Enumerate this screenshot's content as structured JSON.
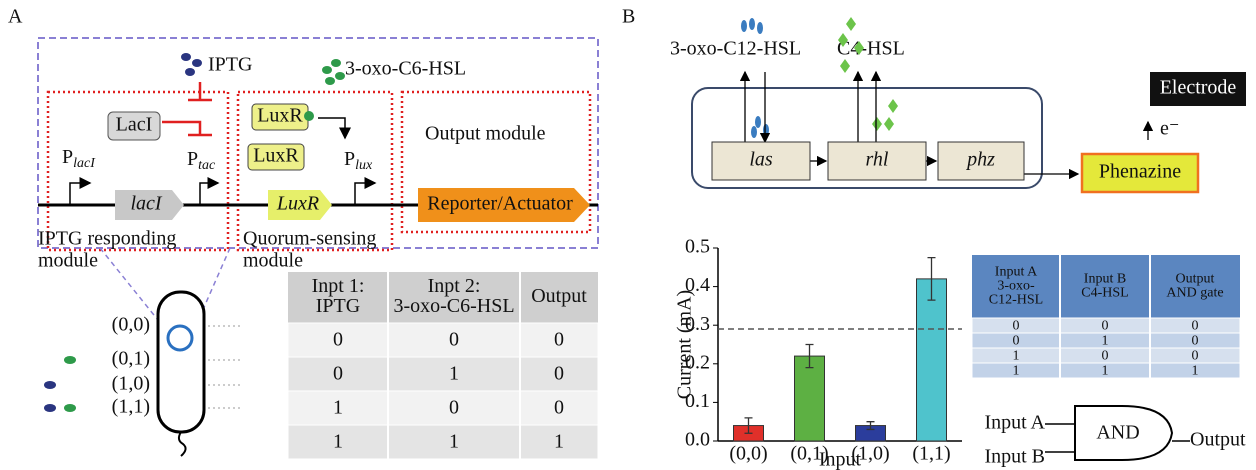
{
  "panel_a": {
    "label": "A",
    "molecule_1": "IPTG",
    "molecule_2": "3-oxo-C6-HSL",
    "protein_laci": "LacI",
    "protein_luxr_1": "LuxR",
    "protein_luxr_2": "LuxR",
    "output_module": "Output module",
    "promoter_laci": {
      "main": "P",
      "sub": "lacI"
    },
    "promoter_tac": {
      "main": "P",
      "sub": "tac"
    },
    "promoter_lux": {
      "main": "P",
      "sub": "lux"
    },
    "gene_laci": "lacI",
    "gene_luxr": "LuxR",
    "gene_reporter": "Reporter/Actuator",
    "module_1": [
      "IPTG responding",
      "module"
    ],
    "module_2": [
      "Quorum-sensing",
      "module"
    ],
    "inputs": [
      "(0,0)",
      "(0,1)",
      "(1,0)",
      "(1,1)"
    ],
    "table": {
      "header": [
        [
          "Inpt 1:",
          "IPTG"
        ],
        [
          "Inpt 2:",
          "3-oxo-C6-HSL"
        ],
        [
          "Output"
        ]
      ],
      "rows": [
        [
          "0",
          "0",
          "0"
        ],
        [
          "0",
          "1",
          "0"
        ],
        [
          "1",
          "0",
          "0"
        ],
        [
          "1",
          "1",
          "1"
        ]
      ]
    }
  },
  "panel_b": {
    "label": "B",
    "molecule_1": "3-oxo-C12-HSL",
    "molecule_2": "C4-HSL",
    "gene_las": "las",
    "gene_rhl": "rhl",
    "gene_phz": "phz",
    "phenazine": "Phenazine",
    "electrode": "Electrode",
    "electron": "e⁻",
    "table": {
      "header": [
        [
          "Input A",
          "3-oxo-",
          "C12-HSL"
        ],
        [
          "Input B",
          "C4-HSL"
        ],
        [
          "Output",
          "AND gate"
        ]
      ],
      "rows": [
        [
          "0",
          "0",
          "0"
        ],
        [
          "0",
          "1",
          "0"
        ],
        [
          "1",
          "0",
          "0"
        ],
        [
          "1",
          "1",
          "1"
        ]
      ]
    },
    "gate": {
      "input_a": "Input A",
      "input_b": "Input B",
      "label": "AND",
      "output": "Output"
    }
  },
  "chart_data": {
    "type": "bar",
    "ylabel": "Current (mA)",
    "xlabel": "Input",
    "categories": [
      "(0,0)",
      "(0,1)",
      "(1,0)",
      "(1,1)"
    ],
    "values": [
      0.04,
      0.22,
      0.04,
      0.42
    ],
    "errors": [
      0.02,
      0.03,
      0.01,
      0.055
    ],
    "colors": [
      "#e0302a",
      "#5db043",
      "#2b3d9c",
      "#4fc3cc"
    ],
    "threshold": 0.29,
    "ylim": [
      0,
      0.5
    ],
    "yticks": [
      {
        "value": 0,
        "label": "0.0"
      },
      0.1,
      0.2,
      0.3,
      0.4,
      0.5
    ]
  }
}
